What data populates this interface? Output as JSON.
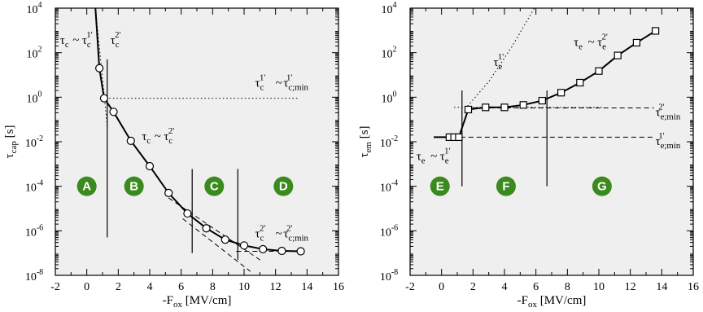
{
  "chart_data": [
    {
      "type": "scatter",
      "xlabel": {
        "main": "-F",
        "sub": "ox",
        "unit": " [MV/cm]"
      },
      "ylabel": {
        "main": "τ",
        "sub": "cap",
        "unit": " [s]"
      },
      "xlim": [
        -2,
        16
      ],
      "ylim_log10": [
        -8,
        4
      ],
      "xticks": [
        "-2",
        "0",
        "2",
        "4",
        "6",
        "8",
        "10",
        "12",
        "14",
        "16"
      ],
      "yticks": [
        {
          "base": "10",
          "exp": "-8"
        },
        {
          "base": "10",
          "exp": "-6"
        },
        {
          "base": "10",
          "exp": "-4"
        },
        {
          "base": "10",
          "exp": "-2"
        },
        {
          "base": "10",
          "exp": "0"
        },
        {
          "base": "10",
          "exp": "2"
        },
        {
          "base": "10",
          "exp": "4"
        }
      ],
      "series": [
        {
          "marker": "circle",
          "points": [
            {
              "x": 0.8,
              "y": 20
            },
            {
              "x": 1.1,
              "y": 0.9
            },
            {
              "x": 1.7,
              "y": 0.22
            },
            {
              "x": 2.8,
              "y": 0.011
            },
            {
              "x": 4.0,
              "y": 0.0008
            },
            {
              "x": 5.2,
              "y": 5e-05
            },
            {
              "x": 6.4,
              "y": 6e-06
            },
            {
              "x": 7.6,
              "y": 1.3e-06
            },
            {
              "x": 8.8,
              "y": 4e-07
            },
            {
              "x": 10.0,
              "y": 2.2e-07
            },
            {
              "x": 11.2,
              "y": 1.5e-07
            },
            {
              "x": 12.4,
              "y": 1.25e-07
            },
            {
              "x": 13.6,
              "y": 1.2e-07
            }
          ]
        }
      ],
      "region_lines_x": [
        1.3,
        6.7,
        9.6
      ],
      "regions": [
        "A",
        "B",
        "C",
        "D"
      ],
      "annotations": {
        "tau_c1": {
          "main": "τ",
          "sub": "c",
          "sup": "1'"
        },
        "tau_c2": {
          "main": "τ",
          "sub": "c",
          "sup": "2'"
        },
        "eq_c1": "~",
        "eq_c2": "~",
        "min_c1": {
          "main": "τ",
          "sub": "c;min",
          "sup": "1'"
        },
        "min_c2": {
          "main": "τ",
          "sub": "c;min",
          "sup": "2'"
        }
      },
      "region_color": "#3a8a1e"
    },
    {
      "type": "scatter",
      "xlabel": {
        "main": "-F",
        "sub": "ox",
        "unit": " [MV/cm]"
      },
      "ylabel": {
        "main": "τ",
        "sub": "em",
        "unit": " [s]"
      },
      "xlim": [
        -2,
        16
      ],
      "ylim_log10": [
        -8,
        4
      ],
      "xticks": [
        "-2",
        "0",
        "2",
        "4",
        "6",
        "8",
        "10",
        "12",
        "14",
        "16"
      ],
      "yticks": [
        {
          "base": "10",
          "exp": "-8"
        },
        {
          "base": "10",
          "exp": "-6"
        },
        {
          "base": "10",
          "exp": "-4"
        },
        {
          "base": "10",
          "exp": "-2"
        },
        {
          "base": "10",
          "exp": "0"
        },
        {
          "base": "10",
          "exp": "2"
        },
        {
          "base": "10",
          "exp": "4"
        }
      ],
      "series": [
        {
          "marker": "square",
          "points": [
            {
              "x": 0.5,
              "y": 0.016
            },
            {
              "x": 0.8,
              "y": 0.016
            },
            {
              "x": 1.1,
              "y": 0.016
            },
            {
              "x": 1.7,
              "y": 0.28
            },
            {
              "x": 2.8,
              "y": 0.35
            },
            {
              "x": 4.0,
              "y": 0.35
            },
            {
              "x": 5.2,
              "y": 0.45
            },
            {
              "x": 6.4,
              "y": 0.7
            },
            {
              "x": 7.6,
              "y": 1.6
            },
            {
              "x": 8.8,
              "y": 4.5
            },
            {
              "x": 10.0,
              "y": 15
            },
            {
              "x": 11.2,
              "y": 75
            },
            {
              "x": 12.4,
              "y": 280
            },
            {
              "x": 13.6,
              "y": 950
            }
          ]
        }
      ],
      "region_lines_x": [
        1.3,
        6.7
      ],
      "regions": [
        "E",
        "F",
        "G"
      ],
      "annotations": {
        "tau_e1": {
          "main": "τ",
          "sub": "e",
          "sup": "1'"
        },
        "tau_e2": {
          "main": "τ",
          "sub": "e",
          "sup": "2'"
        },
        "eq_e1": "~",
        "eq_e2": "~",
        "min_e1": {
          "main": "τ",
          "sub": "e;min",
          "sup": "1'"
        },
        "min_e2": {
          "main": "τ",
          "sub": "e;min",
          "sup": "2'"
        }
      },
      "region_color": "#3a8a1e"
    }
  ]
}
